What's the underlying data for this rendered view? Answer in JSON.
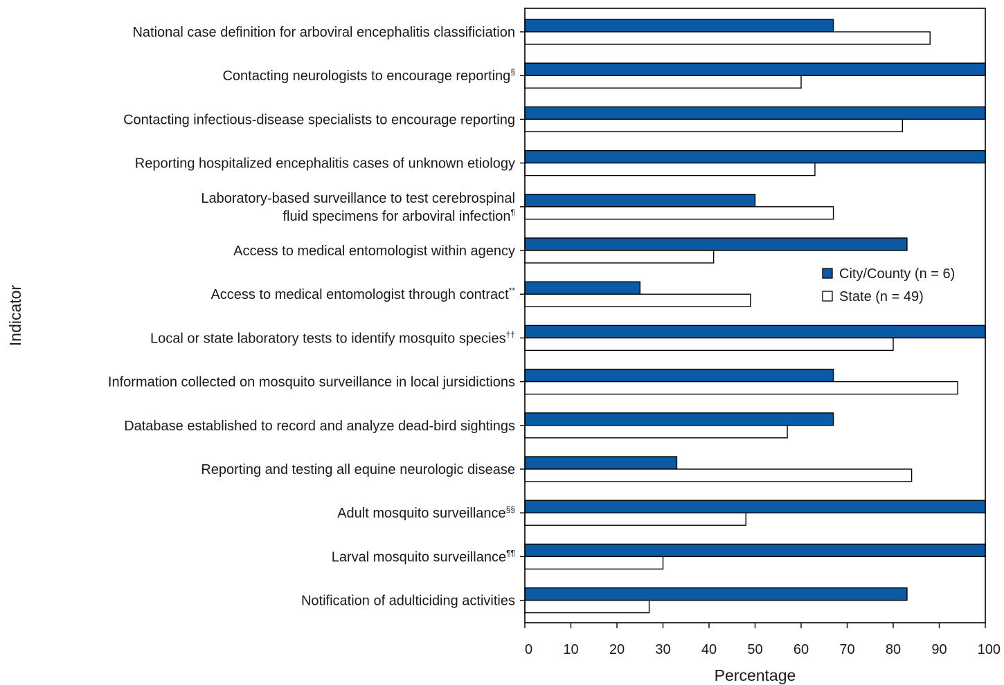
{
  "chart_data": {
    "type": "bar",
    "orientation": "horizontal",
    "categories": [
      {
        "text": "National case definition for arboviral encephalitis classificiation",
        "sup": ""
      },
      {
        "text": "Contacting neurologists to encourage reporting",
        "sup": "§"
      },
      {
        "text": "Contacting infectious-disease specialists to encourage reporting",
        "sup": ""
      },
      {
        "text": "Reporting hospitalized encephalitis cases of unknown etiology",
        "sup": ""
      },
      {
        "text": "Laboratory-based surveillance to test cerebrospinal",
        "line2": "fluid specimens for arboviral infection",
        "sup": "¶"
      },
      {
        "text": "Access to medical entomologist within agency",
        "sup": ""
      },
      {
        "text": "Access to medical entomologist through contract",
        "sup": "**"
      },
      {
        "text": "Local or state laboratory tests to identify mosquito species",
        "sup": "††"
      },
      {
        "text": "Information collected on mosquito surveillance in local jursidictions",
        "sup": ""
      },
      {
        "text": "Database established to record and analyze dead-bird sightings",
        "sup": ""
      },
      {
        "text": "Reporting and testing all equine neurologic disease",
        "sup": ""
      },
      {
        "text": "Adult mosquito surveillance",
        "sup": "§§"
      },
      {
        "text": "Larval mosquito surveillance",
        "sup": "¶¶"
      },
      {
        "text": "Notification of adulticiding activities",
        "sup": ""
      }
    ],
    "series": [
      {
        "name": "City/County (n = 6)",
        "color": "#0b5aa6",
        "values": [
          67,
          100,
          100,
          100,
          50,
          83,
          25,
          100,
          67,
          67,
          33,
          100,
          100,
          83
        ]
      },
      {
        "name": "State (n = 49)",
        "color": "#ffffff",
        "values": [
          88,
          60,
          82,
          63,
          67,
          41,
          49,
          80,
          94,
          57,
          84,
          48,
          30,
          27
        ]
      }
    ],
    "xlabel": "Percentage",
    "ylabel": "Indicator",
    "xlim": [
      0,
      100
    ],
    "xticks": [
      0,
      10,
      20,
      30,
      40,
      50,
      60,
      70,
      80,
      90,
      100
    ],
    "grid": false,
    "legend_position": "right"
  }
}
